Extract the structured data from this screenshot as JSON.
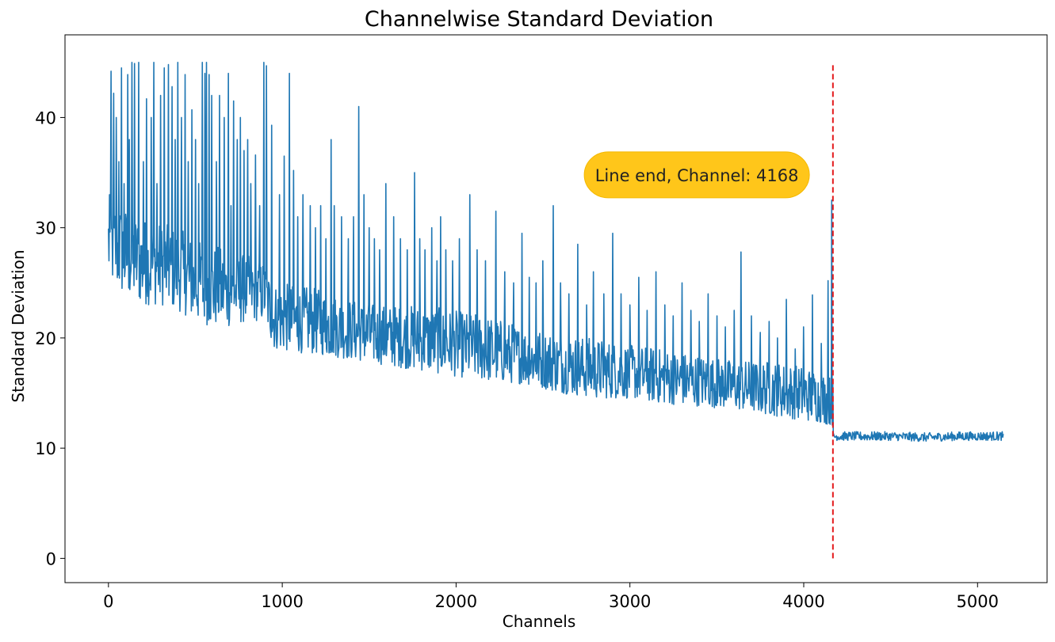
{
  "chart_data": {
    "type": "line",
    "title": "Channelwise Standard Deviation",
    "xlabel": "Channels",
    "ylabel": "Standard Deviation",
    "xlim": [
      -250,
      5400
    ],
    "ylim": [
      -2.2,
      47.5
    ],
    "xticks": [
      0,
      1000,
      2000,
      3000,
      4000,
      5000
    ],
    "yticks": [
      0,
      10,
      20,
      30,
      40
    ],
    "grid": false,
    "legend": "none",
    "series": [
      {
        "color": "#1f77b4",
        "x": [
          0,
          100,
          200,
          300,
          400,
          500,
          600,
          700,
          800,
          900,
          950,
          1000,
          1200,
          1400,
          1600,
          1800,
          2000,
          2200,
          2400,
          2600,
          2800,
          3000,
          3200,
          3400,
          3600,
          3800,
          4000,
          4100,
          4168,
          4169,
          4300,
          4500,
          4700,
          4900,
          5150
        ],
        "y": [
          28.5,
          27.5,
          27,
          26.8,
          26.5,
          25.5,
          25,
          24.5,
          24.5,
          24.5,
          22,
          21.8,
          21.2,
          20.5,
          20,
          19.5,
          19.2,
          18.8,
          18,
          17.5,
          17,
          16.8,
          16.5,
          16,
          15.8,
          15.5,
          15,
          14.8,
          14.5,
          11.1,
          11.1,
          11,
          11,
          11.1,
          11.1
        ],
        "envelope_low": [
          25,
          23.5,
          23,
          23,
          22.5,
          21.5,
          21,
          21,
          21.5,
          21.5,
          19,
          18.8,
          18.5,
          18,
          17.5,
          17,
          16.5,
          16,
          15.8,
          15,
          14.5,
          14.5,
          14,
          13.8,
          13.5,
          13,
          12.5,
          12.3,
          12,
          10.7,
          10.7,
          10.7,
          10.6,
          10.7,
          10.7
        ],
        "envelope_high": [
          33,
          32,
          31,
          30.5,
          30,
          29,
          28.5,
          28,
          27.5,
          27,
          25,
          25,
          24.5,
          23.5,
          23,
          23,
          22.5,
          22,
          21,
          20.5,
          20,
          19.5,
          19,
          18.5,
          18,
          18,
          17.5,
          17,
          16.5,
          11.5,
          11.5,
          11.5,
          11.4,
          11.5,
          11.5
        ],
        "spikes": [
          [
            5,
            33
          ],
          [
            15,
            44.2
          ],
          [
            30,
            42.2
          ],
          [
            45,
            40
          ],
          [
            60,
            36
          ],
          [
            75,
            44.5
          ],
          [
            90,
            34
          ],
          [
            110,
            43.9
          ],
          [
            120,
            38
          ],
          [
            135,
            45
          ],
          [
            150,
            44.9
          ],
          [
            175,
            45
          ],
          [
            200,
            36
          ],
          [
            220,
            41.7
          ],
          [
            245,
            40
          ],
          [
            260,
            45
          ],
          [
            280,
            34
          ],
          [
            300,
            42
          ],
          [
            320,
            44.5
          ],
          [
            345,
            44.8
          ],
          [
            365,
            42.8
          ],
          [
            385,
            38
          ],
          [
            400,
            45
          ],
          [
            420,
            40
          ],
          [
            440,
            43.9
          ],
          [
            460,
            36
          ],
          [
            480,
            40.7
          ],
          [
            500,
            38
          ],
          [
            520,
            34
          ],
          [
            540,
            45
          ],
          [
            555,
            44
          ],
          [
            565,
            45
          ],
          [
            580,
            43.9
          ],
          [
            595,
            42
          ],
          [
            620,
            36
          ],
          [
            640,
            42
          ],
          [
            665,
            40
          ],
          [
            690,
            44
          ],
          [
            705,
            32
          ],
          [
            720,
            41.5
          ],
          [
            740,
            38
          ],
          [
            760,
            40
          ],
          [
            780,
            37
          ],
          [
            800,
            38
          ],
          [
            820,
            34
          ],
          [
            845,
            36.6
          ],
          [
            870,
            32
          ],
          [
            895,
            45
          ],
          [
            910,
            44.7
          ],
          [
            940,
            39.3
          ],
          [
            985,
            33
          ],
          [
            1010,
            36.5
          ],
          [
            1040,
            44
          ],
          [
            1065,
            35.2
          ],
          [
            1090,
            31
          ],
          [
            1120,
            33
          ],
          [
            1160,
            32
          ],
          [
            1190,
            30
          ],
          [
            1220,
            32
          ],
          [
            1250,
            29
          ],
          [
            1280,
            38
          ],
          [
            1300,
            32
          ],
          [
            1340,
            31
          ],
          [
            1380,
            29
          ],
          [
            1410,
            31
          ],
          [
            1440,
            41
          ],
          [
            1470,
            33
          ],
          [
            1500,
            30
          ],
          [
            1530,
            29
          ],
          [
            1560,
            28
          ],
          [
            1595,
            34
          ],
          [
            1640,
            31
          ],
          [
            1680,
            29
          ],
          [
            1720,
            28
          ],
          [
            1760,
            35
          ],
          [
            1790,
            29
          ],
          [
            1820,
            28
          ],
          [
            1860,
            30
          ],
          [
            1890,
            27
          ],
          [
            1910,
            31
          ],
          [
            1940,
            28
          ],
          [
            1980,
            27
          ],
          [
            2020,
            29
          ],
          [
            2080,
            33
          ],
          [
            2120,
            28
          ],
          [
            2170,
            27
          ],
          [
            2230,
            31.5
          ],
          [
            2280,
            26
          ],
          [
            2330,
            25
          ],
          [
            2380,
            29.5
          ],
          [
            2420,
            25.5
          ],
          [
            2460,
            25
          ],
          [
            2500,
            27
          ],
          [
            2560,
            32
          ],
          [
            2600,
            25
          ],
          [
            2650,
            24
          ],
          [
            2700,
            28.5
          ],
          [
            2750,
            23
          ],
          [
            2790,
            26
          ],
          [
            2850,
            24
          ],
          [
            2900,
            29.5
          ],
          [
            2950,
            24
          ],
          [
            3000,
            23
          ],
          [
            3050,
            25.5
          ],
          [
            3100,
            22.5
          ],
          [
            3150,
            26
          ],
          [
            3200,
            23
          ],
          [
            3250,
            22
          ],
          [
            3300,
            25
          ],
          [
            3350,
            22.5
          ],
          [
            3400,
            21.5
          ],
          [
            3450,
            24
          ],
          [
            3500,
            22
          ],
          [
            3550,
            21
          ],
          [
            3600,
            22.5
          ],
          [
            3640,
            27.8
          ],
          [
            3700,
            22
          ],
          [
            3750,
            20.5
          ],
          [
            3800,
            21.5
          ],
          [
            3850,
            20
          ],
          [
            3900,
            23.5
          ],
          [
            3950,
            19
          ],
          [
            4000,
            21
          ],
          [
            4050,
            23.9
          ],
          [
            4100,
            19.5
          ],
          [
            4140,
            25.2
          ],
          [
            4160,
            32.5
          ]
        ]
      }
    ],
    "vline": {
      "x": 4168,
      "ymin": 0,
      "ymax": 45,
      "color": "#e41a1c",
      "style": "dashed"
    },
    "annotation": {
      "text": "Line end, Channel: 4168",
      "x": 3385,
      "y": 34.8,
      "background": "#ffc61a"
    }
  }
}
